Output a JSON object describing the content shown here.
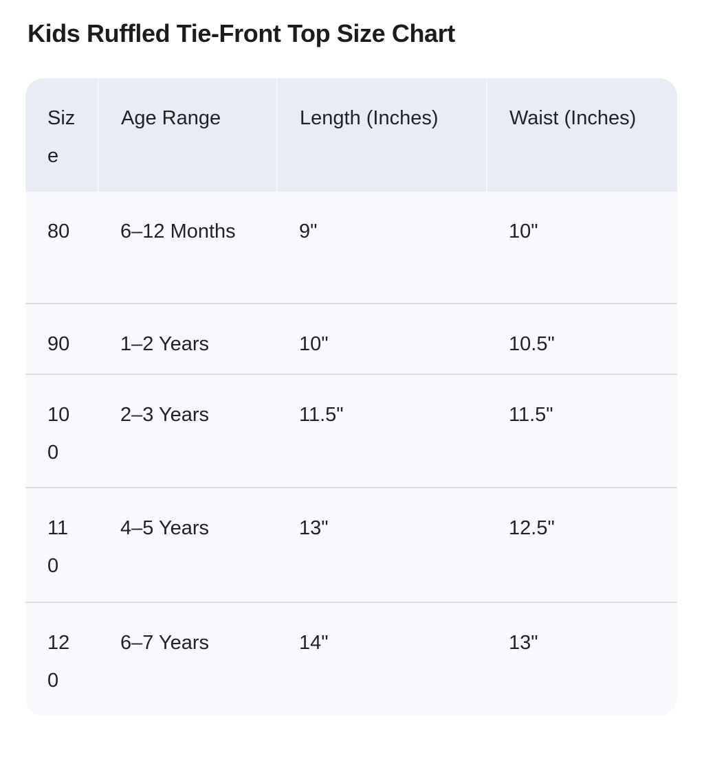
{
  "title": "Kids Ruffled Tie-Front Top Size Chart",
  "colors": {
    "header_bg": "#e8ecf4",
    "row_bg": "#f8f9fd",
    "divider": "#d9dbdf",
    "header_separator": "#f2f5fa",
    "text": "#1f2124",
    "title": "#1a1c1e",
    "page_bg": "#ffffff"
  },
  "chart_data": {
    "type": "table",
    "title": "Kids Ruffled Tie-Front Top Size Chart",
    "columns": [
      "Size",
      "Age Range",
      "Length (Inches)",
      "Waist (Inches)"
    ],
    "rows": [
      [
        "80",
        "6–12 Months",
        "9\"",
        "10\""
      ],
      [
        "90",
        "1–2 Years",
        "10\"",
        "10.5\""
      ],
      [
        "100",
        "2–3 Years",
        "11.5\"",
        "11.5\""
      ],
      [
        "110",
        "4–5 Years",
        "13\"",
        "12.5\""
      ],
      [
        "120",
        "6–7 Years",
        "14\"",
        "13\""
      ]
    ],
    "layout_hints": {
      "header_row_shaded": true,
      "grid": "horizontal-dividers-only",
      "rounded_corners": true,
      "first_column_text_wraps": true
    }
  }
}
